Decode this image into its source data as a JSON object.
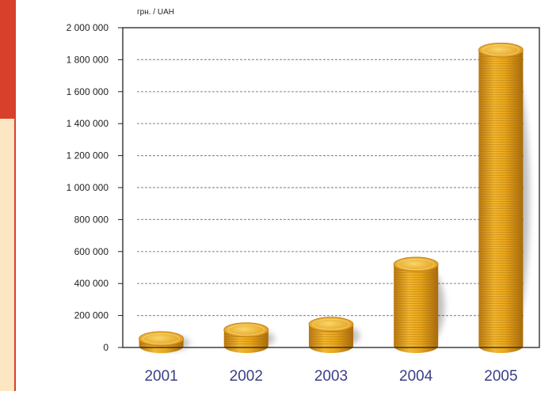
{
  "colors": {
    "side_red": "#d9402c",
    "side_cream": "#fde6c2",
    "coin_gold": "#e8a51a",
    "coin_light": "#f7cd5a",
    "coin_dark": "#b9790f",
    "category_label": "#3c3f86",
    "grid": "#6f6f6f"
  },
  "chart_data": {
    "type": "bar",
    "bar_style": "stacked-coins",
    "unit_label": "грн. / UAH",
    "categories": [
      "2001",
      "2002",
      "2003",
      "2004",
      "2005"
    ],
    "values": [
      55000,
      110000,
      145000,
      520000,
      1860000
    ],
    "ylim": [
      0,
      2000000
    ],
    "yticks": [
      0,
      200000,
      400000,
      600000,
      800000,
      1000000,
      1200000,
      1400000,
      1600000,
      1800000,
      2000000
    ],
    "ytick_labels": [
      "0",
      "200 000",
      "400 000",
      "600 000",
      "800 000",
      "1 000 000",
      "1 200 000",
      "1 400 000",
      "1 600 000",
      "1 800 000",
      "2 000 000"
    ],
    "grid": true,
    "legend": "none"
  }
}
